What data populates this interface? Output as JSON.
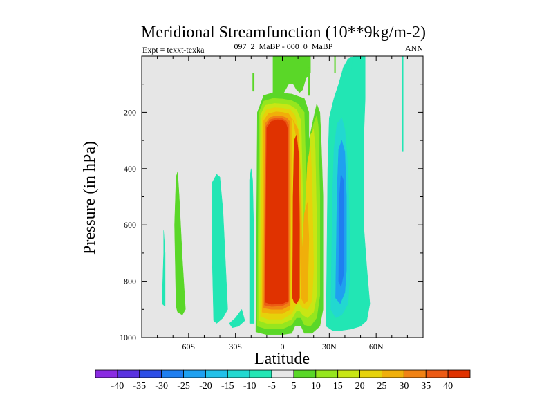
{
  "chart_data": {
    "type": "heatmap",
    "title": "Meridional Streamfunction (10**9kg/m-2)",
    "subtitle_left": "Expt = texxt-texka",
    "subtitle_center": "097_2_MaBP - 000_0_MaBP",
    "subtitle_right": "ANN",
    "xlabel": "Latitude",
    "ylabel": "Pressure (in hPa)",
    "xlim": [
      -90,
      90
    ],
    "ylim": [
      1000,
      0
    ],
    "x_ticks": [
      {
        "value": -60,
        "label": "60S"
      },
      {
        "value": -30,
        "label": "30S"
      },
      {
        "value": 0,
        "label": "0"
      },
      {
        "value": 30,
        "label": "30N"
      },
      {
        "value": 60,
        "label": "60N"
      }
    ],
    "y_ticks": [
      {
        "value": 200,
        "label": "200"
      },
      {
        "value": 400,
        "label": "400"
      },
      {
        "value": 600,
        "label": "600"
      },
      {
        "value": 800,
        "label": "800"
      },
      {
        "value": 1000,
        "label": "1000"
      }
    ],
    "background_color": "#e6e6e6",
    "colorbar": {
      "labels": [
        "-40",
        "-35",
        "-30",
        "-25",
        "-20",
        "-15",
        "-10",
        "-5",
        "5",
        "10",
        "15",
        "20",
        "25",
        "30",
        "35",
        "40"
      ],
      "colors": [
        "#8a2be2",
        "#5a32e0",
        "#2d4ee6",
        "#1f7ef0",
        "#1fa0f0",
        "#22c0e8",
        "#22d8d0",
        "#22e6b4",
        "#e6e6e6",
        "#5ad728",
        "#96e61e",
        "#c8e614",
        "#e6d20a",
        "#f0af0a",
        "#f08214",
        "#ec5a14",
        "#e03200"
      ]
    },
    "regions": [
      {
        "name": "cyan-band-60s",
        "color": "#22e6b4",
        "points": [
          [
            -77,
            880
          ],
          [
            -76,
            700
          ],
          [
            -76,
            620
          ],
          [
            -75,
            700
          ],
          [
            -75,
            890
          ]
        ]
      },
      {
        "name": "green-band-60s",
        "color": "#5ad728",
        "points": [
          [
            -68,
            890
          ],
          [
            -69,
            600
          ],
          [
            -68,
            430
          ],
          [
            -67,
            410
          ],
          [
            -66,
            500
          ],
          [
            -64,
            720
          ],
          [
            -62,
            900
          ],
          [
            -64,
            920
          ],
          [
            -67,
            910
          ]
        ]
      },
      {
        "name": "cyan-band-40s",
        "color": "#22e6b4",
        "points": [
          [
            -44,
            940
          ],
          [
            -45,
            700
          ],
          [
            -45,
            450
          ],
          [
            -42,
            420
          ],
          [
            -40,
            430
          ],
          [
            -38,
            550
          ],
          [
            -36,
            780
          ],
          [
            -35,
            900
          ],
          [
            -38,
            930
          ],
          [
            -42,
            950
          ]
        ]
      },
      {
        "name": "cyan-patch-20s",
        "color": "#22e6b4",
        "points": [
          [
            -34,
            950
          ],
          [
            -30,
            930
          ],
          [
            -26,
            900
          ],
          [
            -24,
            940
          ],
          [
            -28,
            960
          ],
          [
            -32,
            965
          ]
        ]
      },
      {
        "name": "cyan-edge-20s",
        "color": "#22e6b4",
        "points": [
          [
            -21,
            950
          ],
          [
            -21,
            440
          ],
          [
            -20,
            400
          ],
          [
            -19,
            440
          ],
          [
            -18,
            700
          ],
          [
            -18,
            950
          ]
        ]
      },
      {
        "name": "green-top-strip",
        "color": "#5ad728",
        "points": [
          [
            -19,
            125
          ],
          [
            -19,
            60
          ],
          [
            -18,
            60
          ],
          [
            -18,
            125
          ]
        ]
      },
      {
        "name": "green-upper-column",
        "color": "#5ad728",
        "points": [
          [
            -6,
            155
          ],
          [
            -6,
            0
          ],
          [
            18,
            0
          ],
          [
            18,
            60
          ],
          [
            15,
            80
          ],
          [
            13,
            120
          ],
          [
            11,
            130
          ],
          [
            9,
            120
          ],
          [
            7,
            100
          ],
          [
            4,
            100
          ],
          [
            2,
            120
          ],
          [
            0,
            140
          ]
        ]
      },
      {
        "name": "cell-shell-green",
        "color": "#5ad728",
        "points": [
          [
            -17,
            980
          ],
          [
            -16,
            200
          ],
          [
            -12,
            140
          ],
          [
            -6,
            130
          ],
          [
            0,
            132
          ],
          [
            6,
            135
          ],
          [
            11,
            145
          ],
          [
            14,
            150
          ],
          [
            17,
            200
          ],
          [
            17,
            300
          ],
          [
            20,
            220
          ],
          [
            22,
            170
          ],
          [
            24,
            200
          ],
          [
            25,
            320
          ],
          [
            26,
            500
          ],
          [
            26,
            800
          ],
          [
            26,
            900
          ],
          [
            24,
            960
          ],
          [
            19,
            985
          ],
          [
            14,
            985
          ],
          [
            12,
            960
          ],
          [
            8,
            960
          ],
          [
            6,
            985
          ],
          [
            0,
            990
          ],
          [
            -10,
            990
          ]
        ]
      },
      {
        "name": "cell-shell-yellowgreen",
        "color": "#96e61e",
        "points": [
          [
            -16,
            960
          ],
          [
            -15,
            200
          ],
          [
            -12,
            160
          ],
          [
            -6,
            150
          ],
          [
            0,
            152
          ],
          [
            6,
            158
          ],
          [
            10,
            170
          ],
          [
            14,
            200
          ],
          [
            15,
            400
          ],
          [
            16,
            750
          ],
          [
            18,
            300
          ],
          [
            20,
            240
          ],
          [
            22,
            210
          ],
          [
            23,
            250
          ],
          [
            24,
            500
          ],
          [
            24,
            850
          ],
          [
            22,
            930
          ],
          [
            18,
            960
          ],
          [
            14,
            955
          ],
          [
            12,
            930
          ],
          [
            9,
            930
          ],
          [
            6,
            955
          ],
          [
            0,
            970
          ],
          [
            -10,
            970
          ]
        ]
      },
      {
        "name": "cell-shell-yellow",
        "color": "#c8e614",
        "points": [
          [
            -15,
            940
          ],
          [
            -14,
            210
          ],
          [
            -11,
            175
          ],
          [
            -5,
            168
          ],
          [
            0,
            170
          ],
          [
            5,
            175
          ],
          [
            9,
            190
          ],
          [
            12,
            230
          ],
          [
            13,
            500
          ],
          [
            14,
            820
          ],
          [
            16,
            450
          ],
          [
            18,
            280
          ],
          [
            20,
            260
          ],
          [
            21,
            330
          ],
          [
            22,
            600
          ],
          [
            22,
            850
          ],
          [
            20,
            910
          ],
          [
            16,
            930
          ],
          [
            13,
            920
          ],
          [
            11,
            905
          ],
          [
            9,
            905
          ],
          [
            6,
            935
          ],
          [
            0,
            950
          ],
          [
            -10,
            950
          ]
        ]
      },
      {
        "name": "cell-shell-gold",
        "color": "#e6d20a",
        "points": [
          [
            -14,
            925
          ],
          [
            -13,
            220
          ],
          [
            -10,
            190
          ],
          [
            -5,
            183
          ],
          [
            0,
            185
          ],
          [
            5,
            190
          ],
          [
            8,
            210
          ],
          [
            11,
            280
          ],
          [
            12,
            560
          ],
          [
            12.5,
            820
          ],
          [
            14,
            600
          ],
          [
            16,
            380
          ],
          [
            18,
            320
          ],
          [
            19,
            450
          ],
          [
            20,
            750
          ],
          [
            19,
            870
          ],
          [
            16,
            900
          ],
          [
            13,
            895
          ],
          [
            11,
            880
          ],
          [
            9,
            880
          ],
          [
            6,
            915
          ],
          [
            0,
            935
          ],
          [
            -9,
            935
          ]
        ]
      },
      {
        "name": "cell-shell-orange",
        "color": "#f0af0a",
        "points": [
          [
            -13,
            910
          ],
          [
            -12,
            230
          ],
          [
            -9,
            205
          ],
          [
            -4,
            198
          ],
          [
            0,
            200
          ],
          [
            4,
            205
          ],
          [
            7,
            230
          ],
          [
            10,
            320
          ],
          [
            11,
            600
          ],
          [
            12,
            860
          ],
          [
            14,
            880
          ],
          [
            16,
            870
          ],
          [
            17,
            650
          ],
          [
            16,
            520
          ],
          [
            14,
            560
          ],
          [
            12.5,
            700
          ],
          [
            12,
            450
          ],
          [
            10,
            260
          ],
          [
            6,
            220
          ],
          [
            5,
            900
          ],
          [
            0,
            915
          ],
          [
            -8,
            915
          ]
        ]
      },
      {
        "name": "cell-shell-darkorange",
        "color": "#f08214",
        "points": [
          [
            -12,
            895
          ],
          [
            -11,
            240
          ],
          [
            -8,
            218
          ],
          [
            -4,
            212
          ],
          [
            0,
            214
          ],
          [
            3,
            220
          ],
          [
            5,
            235
          ],
          [
            5,
            885
          ],
          [
            0,
            900
          ],
          [
            -7,
            900
          ]
        ]
      },
      {
        "name": "cell-shell-redorange",
        "color": "#ec5a14",
        "points": [
          [
            -11.5,
            885
          ],
          [
            -10.5,
            250
          ],
          [
            -8,
            226
          ],
          [
            -4,
            220
          ],
          [
            0,
            222
          ],
          [
            2.5,
            230
          ],
          [
            4,
            245
          ],
          [
            4,
            875
          ],
          [
            0,
            888
          ],
          [
            -7,
            890
          ]
        ]
      },
      {
        "name": "cell-core-red",
        "color": "#e03200",
        "points": [
          [
            -11,
            875
          ],
          [
            -10,
            255
          ],
          [
            -7,
            232
          ],
          [
            -3,
            226
          ],
          [
            0,
            228
          ],
          [
            2,
            235
          ],
          [
            3.5,
            260
          ],
          [
            3.8,
            870
          ],
          [
            0,
            880
          ],
          [
            -7,
            882
          ]
        ]
      },
      {
        "name": "nh-lobe-red",
        "color": "#e03200",
        "points": [
          [
            6.5,
            860
          ],
          [
            6.8,
            500
          ],
          [
            7.5,
            300
          ],
          [
            9,
            280
          ],
          [
            10.5,
            350
          ],
          [
            11,
            600
          ],
          [
            11,
            860
          ],
          [
            9,
            880
          ],
          [
            7.5,
            875
          ]
        ]
      },
      {
        "name": "green-strip-17n",
        "color": "#5ad728",
        "points": [
          [
            16.5,
            140
          ],
          [
            16.7,
            40
          ],
          [
            17.5,
            40
          ],
          [
            17.7,
            140
          ]
        ]
      },
      {
        "name": "cyan-band-nh",
        "color": "#22e6b4",
        "points": [
          [
            28,
            960
          ],
          [
            29,
            400
          ],
          [
            30,
            220
          ],
          [
            33,
            150
          ],
          [
            36,
            100
          ],
          [
            39,
            40
          ],
          [
            42,
            10
          ],
          [
            46,
            0
          ],
          [
            53,
            0
          ],
          [
            53,
            150
          ],
          [
            52,
            300
          ],
          [
            52,
            600
          ],
          [
            54,
            750
          ],
          [
            56,
            880
          ],
          [
            54,
            940
          ],
          [
            50,
            960
          ],
          [
            44,
            970
          ],
          [
            38,
            975
          ],
          [
            32,
            975
          ]
        ]
      },
      {
        "name": "cyan-top-44n",
        "color": "#22e6b4",
        "points": [
          [
            44,
            60
          ],
          [
            45,
            0
          ],
          [
            47,
            0
          ],
          [
            47,
            60
          ]
        ]
      },
      {
        "name": "aqua-band-nh",
        "color": "#22d8d0",
        "points": [
          [
            31,
            900
          ],
          [
            32,
            500
          ],
          [
            33,
            330
          ],
          [
            35,
            240
          ],
          [
            38,
            220
          ],
          [
            40,
            260
          ],
          [
            42,
            400
          ],
          [
            43,
            600
          ],
          [
            43,
            800
          ],
          [
            42,
            880
          ],
          [
            38,
            920
          ],
          [
            34,
            930
          ]
        ]
      },
      {
        "name": "skyblue-band-nh",
        "color": "#1fa0f0",
        "points": [
          [
            34,
            860
          ],
          [
            35,
            480
          ],
          [
            36,
            330
          ],
          [
            38,
            300
          ],
          [
            40,
            340
          ],
          [
            41,
            500
          ],
          [
            41,
            760
          ],
          [
            40,
            840
          ],
          [
            37,
            880
          ]
        ]
      },
      {
        "name": "blue-core-nh",
        "color": "#1f7ef0",
        "points": [
          [
            36,
            800
          ],
          [
            36.5,
            500
          ],
          [
            37.5,
            420
          ],
          [
            39,
            440
          ],
          [
            39.5,
            600
          ],
          [
            39,
            780
          ],
          [
            37.5,
            820
          ]
        ]
      },
      {
        "name": "cyan-strip-77n",
        "color": "#22e6b4",
        "points": [
          [
            76.5,
            340
          ],
          [
            76.5,
            0
          ],
          [
            77.3,
            0
          ],
          [
            77.3,
            340
          ]
        ]
      },
      {
        "name": "green-tick-80n",
        "color": "#5ad728",
        "points": [
          [
            33.3,
            60
          ],
          [
            33.3,
            0
          ],
          [
            34,
            0
          ],
          [
            34,
            60
          ]
        ]
      }
    ]
  }
}
